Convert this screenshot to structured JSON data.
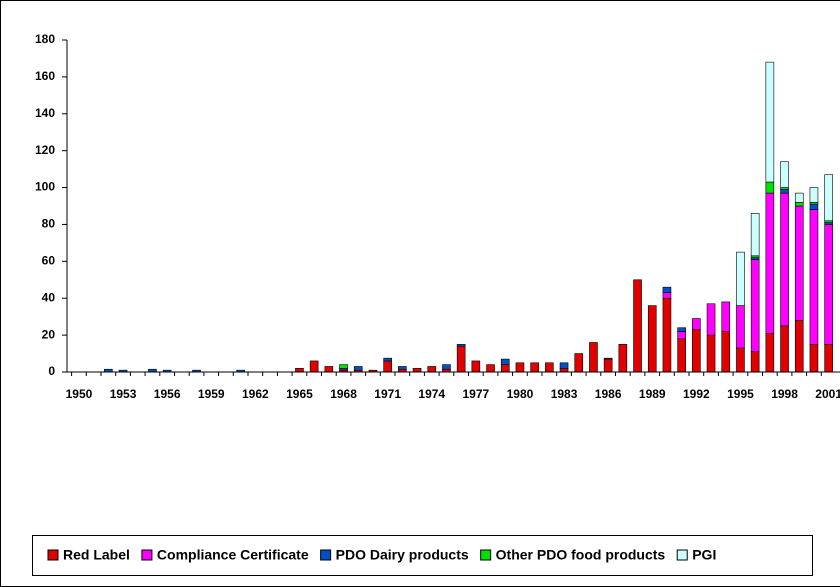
{
  "chart_data": {
    "type": "bar",
    "stacked": true,
    "categories": [
      "1950",
      null,
      null,
      "1953",
      null,
      null,
      "1956",
      null,
      null,
      "1959",
      null,
      null,
      "1962",
      null,
      null,
      "1965",
      null,
      null,
      "1968",
      null,
      null,
      "1971",
      null,
      null,
      "1974",
      null,
      null,
      "1977",
      null,
      null,
      "1980",
      null,
      null,
      "1983",
      null,
      null,
      "1986",
      null,
      null,
      "1989",
      null,
      null,
      "1992",
      null,
      null,
      "1995",
      null,
      null,
      "1998",
      null,
      null,
      "2001"
    ],
    "series": [
      {
        "name": "Red Label",
        "color": "#e00000",
        "values": [
          0,
          0,
          0,
          0,
          0,
          0,
          0,
          0,
          0,
          0,
          0,
          0,
          0,
          0,
          0,
          2,
          6,
          3,
          1,
          1,
          1,
          6,
          1.5,
          2,
          3,
          1.5,
          14,
          6,
          4,
          4,
          5,
          5,
          5,
          2,
          10,
          16,
          7,
          15,
          50,
          36,
          40,
          18,
          23,
          20,
          22,
          13,
          11,
          21,
          25,
          28,
          15,
          15
        ]
      },
      {
        "name": "Compliance Certificate",
        "color": "#ff00ff",
        "values": [
          0,
          0,
          0,
          0,
          0,
          0,
          0,
          0,
          0,
          0,
          0,
          0,
          0,
          0,
          0,
          0,
          0,
          0,
          0,
          0,
          0,
          0,
          0,
          0,
          0,
          0,
          0,
          0,
          0,
          0,
          0,
          0,
          0,
          0,
          0,
          0,
          0,
          0,
          0,
          0,
          3,
          4,
          6,
          17,
          16,
          23,
          50,
          76,
          72,
          62,
          73,
          65
        ]
      },
      {
        "name": "PDO Dairy products",
        "color": "#0050c8",
        "values": [
          0,
          0,
          1.5,
          1,
          0,
          1.5,
          1,
          0,
          1,
          0,
          0,
          1,
          0,
          0,
          0,
          0,
          0,
          0,
          1,
          2,
          0,
          1.5,
          1.5,
          0,
          0,
          2.5,
          1,
          0,
          0,
          3,
          0,
          0,
          0,
          3,
          0,
          0,
          0.5,
          0,
          0,
          0,
          3,
          2,
          0,
          0,
          0,
          0,
          1,
          0,
          2,
          0,
          3,
          1
        ]
      },
      {
        "name": "Other PDO food products",
        "color": "#00e000",
        "values": [
          0,
          0,
          0,
          0,
          0,
          0,
          0,
          0,
          0,
          0,
          0,
          0,
          0,
          0,
          0,
          0,
          0,
          0,
          2,
          0,
          0,
          0,
          0,
          0,
          0,
          0,
          0,
          0,
          0,
          0,
          0,
          0,
          0,
          0,
          0,
          0,
          0,
          0,
          0,
          0,
          0,
          0,
          0,
          0,
          0,
          0,
          1,
          6,
          1,
          2,
          1,
          1
        ]
      },
      {
        "name": "PGI",
        "color": "#ccffff",
        "values": [
          0,
          0,
          0,
          0,
          0,
          0,
          0,
          0,
          0,
          0,
          0,
          0,
          0,
          0,
          0,
          0,
          0,
          0,
          0,
          0,
          0,
          0,
          0,
          0,
          0,
          0,
          0,
          0,
          0,
          0,
          0,
          0,
          0,
          0,
          0,
          0,
          0,
          0,
          0,
          0,
          0,
          0,
          0,
          0,
          0,
          29,
          23,
          65,
          14,
          5,
          8,
          25
        ]
      }
    ],
    "ylim": [
      0,
      180
    ],
    "yticks": [
      0,
      20,
      40,
      60,
      80,
      100,
      120,
      140,
      160,
      180
    ],
    "legend": "bottom"
  }
}
